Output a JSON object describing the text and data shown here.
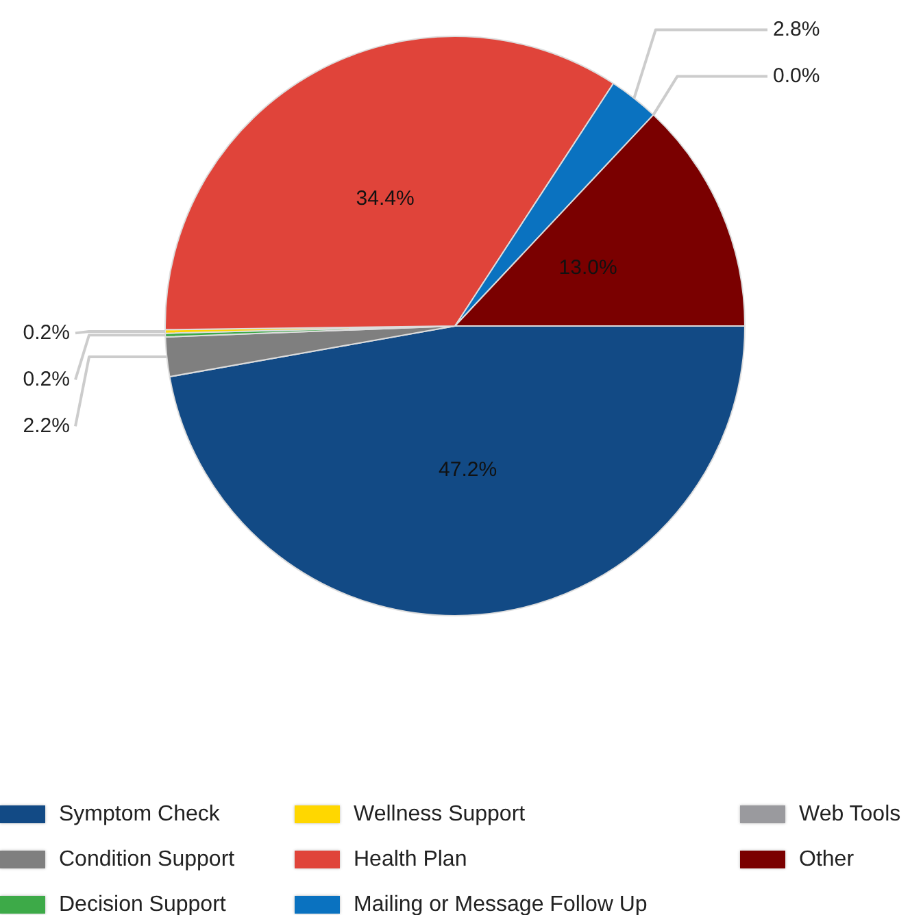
{
  "chart_data": {
    "type": "pie",
    "categories": [
      "Symptom Check",
      "Condition Support",
      "Decision Support",
      "Wellness Support",
      "Health Plan",
      "Mailing or Message Follow Up",
      "Web Tools",
      "Other"
    ],
    "values": [
      47.2,
      2.2,
      0.2,
      0.2,
      34.4,
      2.8,
      0.0,
      13.0
    ],
    "colors": [
      "#124a85",
      "#7f7f7f",
      "#3daa48",
      "#ffd700",
      "#e0443a",
      "#0a72c0",
      "#9a9a9e",
      "#7a0000"
    ],
    "value_labels": [
      "47.2%",
      "2.2%",
      "0.2%",
      "0.2%",
      "34.4%",
      "2.8%",
      "0.0%",
      "13.0%"
    ],
    "legend": "bottom"
  }
}
